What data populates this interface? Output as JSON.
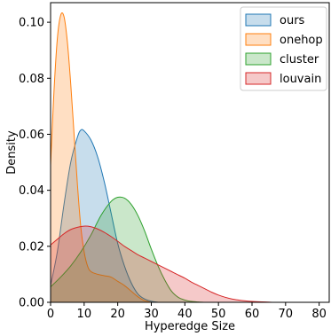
{
  "chart_data": {
    "type": "area",
    "title": "",
    "xlabel": "Hyperedge Size",
    "ylabel": "Density",
    "xlim": [
      0,
      83
    ],
    "ylim": [
      0,
      0.107
    ],
    "xticks": [
      0,
      10,
      20,
      30,
      40,
      50,
      60,
      70,
      80
    ],
    "yticks": [
      0.0,
      0.02,
      0.04,
      0.06,
      0.08,
      0.1
    ],
    "ytick_labels": [
      "0.00",
      "0.02",
      "0.04",
      "0.06",
      "0.08",
      "0.10"
    ],
    "grid": false,
    "legend_position": "top-right",
    "series": [
      {
        "name": "ours",
        "color": "#1f77b4",
        "x": [
          0,
          2,
          4,
          6,
          8,
          9,
          10,
          12,
          14,
          16,
          18,
          20,
          22,
          24,
          26,
          28,
          30,
          32
        ],
        "y": [
          0.006,
          0.018,
          0.035,
          0.05,
          0.059,
          0.0615,
          0.0612,
          0.058,
          0.052,
          0.043,
          0.032,
          0.021,
          0.013,
          0.007,
          0.003,
          0.0012,
          0.0004,
          0.0
        ]
      },
      {
        "name": "onehop",
        "color": "#ff7f0e",
        "x": [
          0,
          1,
          2,
          3,
          4,
          5,
          6,
          7,
          8,
          9,
          10,
          11,
          12,
          14,
          16,
          18,
          20,
          22,
          24,
          26,
          28,
          30
        ],
        "y": [
          0.049,
          0.075,
          0.094,
          0.1025,
          0.102,
          0.093,
          0.078,
          0.06,
          0.042,
          0.027,
          0.018,
          0.013,
          0.011,
          0.01,
          0.0095,
          0.009,
          0.0075,
          0.006,
          0.004,
          0.002,
          0.0006,
          0.0
        ]
      },
      {
        "name": "cluster",
        "color": "#2ca02c",
        "x": [
          0,
          3,
          6,
          9,
          12,
          15,
          18,
          20,
          22,
          24,
          26,
          28,
          30,
          32,
          34,
          36,
          38,
          40,
          42,
          44,
          46
        ],
        "y": [
          0.0055,
          0.009,
          0.013,
          0.018,
          0.024,
          0.031,
          0.036,
          0.0375,
          0.0372,
          0.035,
          0.031,
          0.0255,
          0.019,
          0.013,
          0.008,
          0.004,
          0.0018,
          0.0008,
          0.0003,
          0.0001,
          0.0
        ]
      },
      {
        "name": "louvain",
        "color": "#d62728",
        "x": [
          0,
          2,
          4,
          6,
          8,
          10,
          12,
          14,
          16,
          18,
          20,
          22,
          24,
          26,
          28,
          30,
          32,
          34,
          36,
          38,
          40,
          42,
          44,
          46,
          48,
          50,
          52,
          54,
          56,
          58,
          60,
          62,
          64,
          66
        ],
        "y": [
          0.0205,
          0.0225,
          0.0245,
          0.026,
          0.0268,
          0.0272,
          0.027,
          0.0262,
          0.025,
          0.0235,
          0.0218,
          0.02,
          0.0185,
          0.017,
          0.0158,
          0.0146,
          0.0134,
          0.0122,
          0.011,
          0.0098,
          0.0086,
          0.0072,
          0.006,
          0.0048,
          0.0036,
          0.0026,
          0.0018,
          0.0012,
          0.0008,
          0.0005,
          0.0003,
          0.0002,
          0.0001,
          0.0
        ]
      }
    ]
  }
}
